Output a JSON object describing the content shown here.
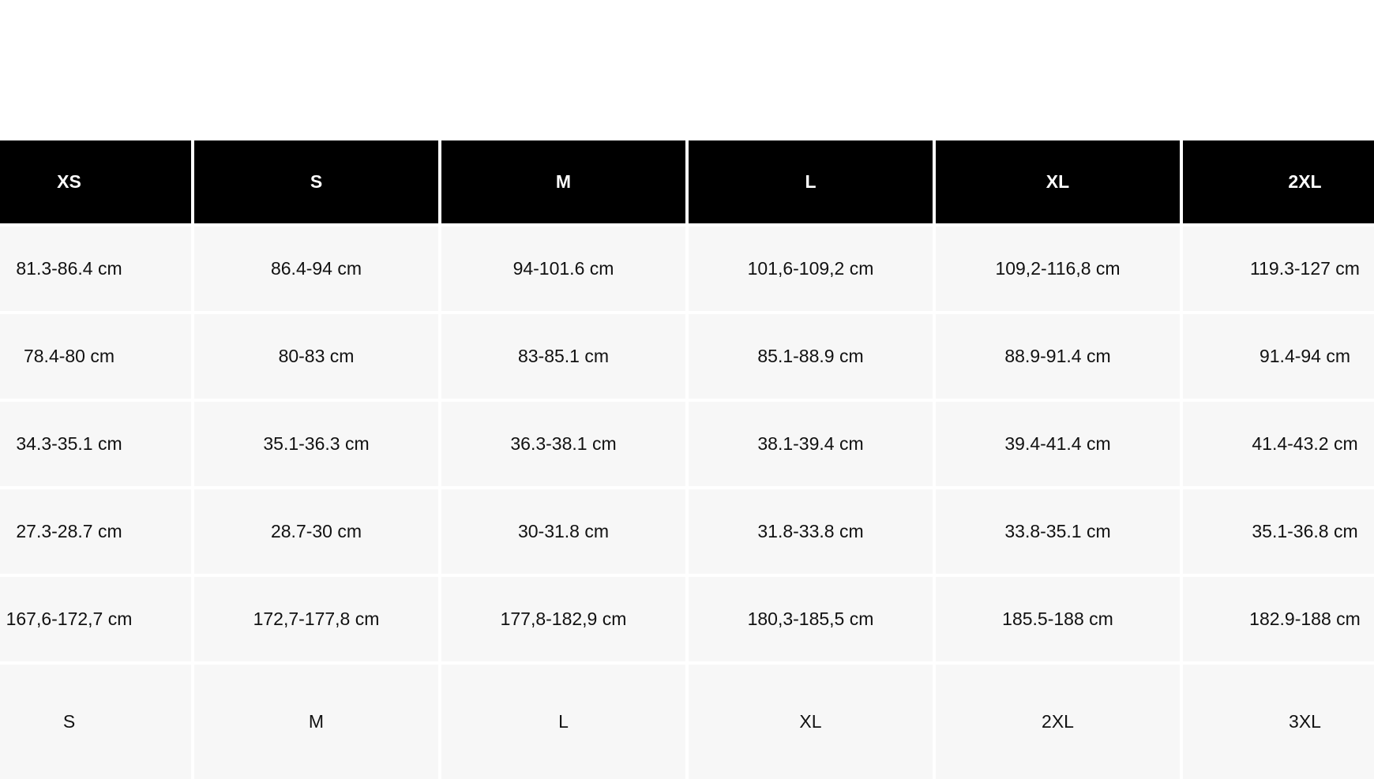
{
  "table": {
    "headers": [
      "XS",
      "S",
      "M",
      "L",
      "XL",
      "2XL"
    ],
    "rows": [
      [
        "81.3-86.4 cm",
        "86.4-94 cm",
        "94-101.6 cm",
        "101,6-109,2 cm",
        "109,2-116,8 cm",
        "119.3-127 cm"
      ],
      [
        "78.4-80 cm",
        "80-83 cm",
        "83-85.1 cm",
        "85.1-88.9 cm",
        "88.9-91.4 cm",
        "91.4-94 cm"
      ],
      [
        "34.3-35.1 cm",
        "35.1-36.3 cm",
        "36.3-38.1 cm",
        "38.1-39.4 cm",
        "39.4-41.4 cm",
        "41.4-43.2 cm"
      ],
      [
        "27.3-28.7 cm",
        "28.7-30 cm",
        "30-31.8 cm",
        "31.8-33.8 cm",
        "33.8-35.1 cm",
        "35.1-36.8 cm"
      ],
      [
        "167,6-172,7 cm",
        "172,7-177,8 cm",
        "177,8-182,9 cm",
        "180,3-185,5 cm",
        "185.5-188 cm",
        "182.9-188 cm"
      ],
      [
        "S",
        "M",
        "L",
        "XL",
        "2XL",
        "3XL"
      ]
    ]
  },
  "colors": {
    "header_bg": "#000000",
    "header_text": "#ffffff",
    "cell_bg": "#f7f7f7"
  }
}
